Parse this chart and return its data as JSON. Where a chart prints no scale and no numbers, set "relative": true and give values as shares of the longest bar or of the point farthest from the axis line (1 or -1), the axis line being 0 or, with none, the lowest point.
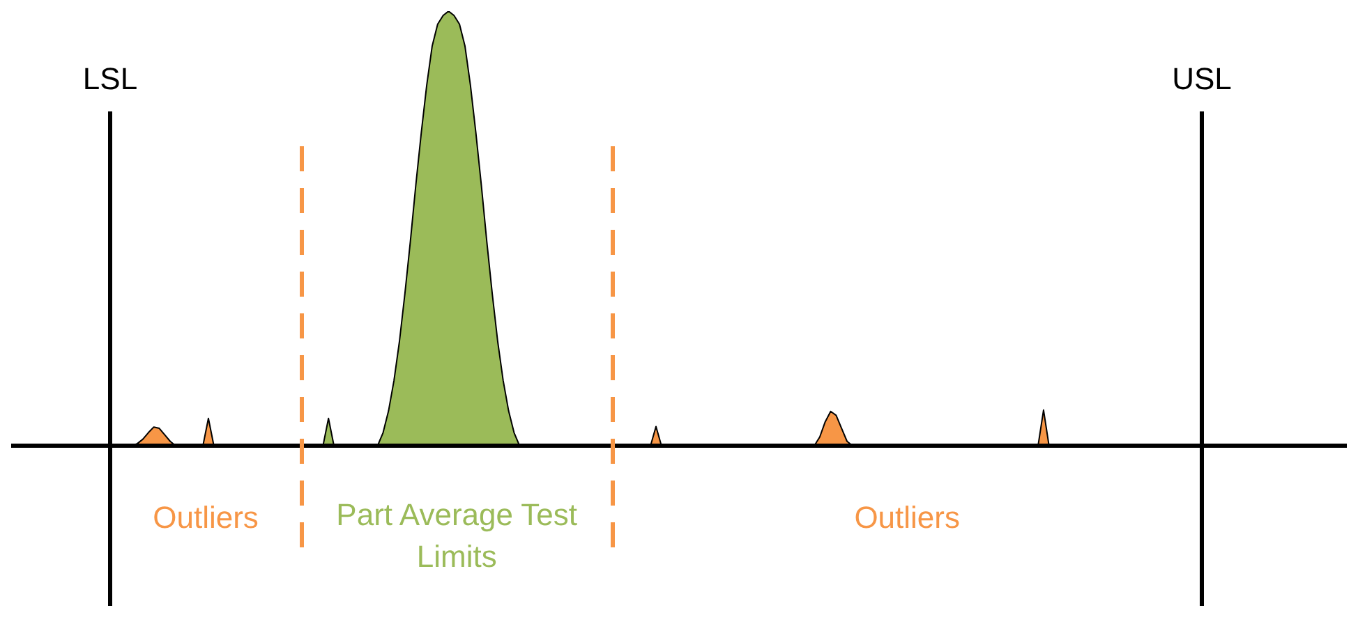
{
  "chart_data": {
    "type": "area",
    "relative": true,
    "categories": [
      "LSL",
      null,
      null,
      null,
      null,
      null,
      null,
      null,
      null,
      null,
      null,
      null,
      null,
      null,
      null,
      null,
      null,
      null,
      null,
      null,
      null,
      null,
      null,
      null,
      null,
      null,
      null,
      null,
      null,
      null,
      null,
      null,
      null,
      null,
      null,
      null,
      null,
      null,
      null,
      null,
      null,
      null,
      null,
      null,
      null,
      null,
      null,
      null,
      null,
      null,
      null,
      null,
      null,
      null,
      null,
      null,
      null,
      null,
      null,
      null,
      null,
      null,
      null,
      null,
      null,
      null,
      null,
      null,
      null,
      null,
      null,
      null,
      null,
      null,
      null,
      null,
      null,
      null,
      null,
      null,
      null,
      null,
      null,
      null,
      null,
      null,
      null,
      null,
      null,
      null,
      null,
      null,
      null,
      null,
      null,
      null,
      null,
      null,
      null,
      null,
      null,
      null,
      null,
      null,
      null,
      null,
      null,
      null,
      null,
      null,
      null,
      null,
      null,
      null,
      null,
      null,
      null,
      null,
      null,
      null,
      null,
      null,
      null,
      null,
      null,
      null,
      null,
      null,
      null,
      null,
      null,
      null,
      null,
      null,
      null,
      null,
      null,
      null,
      null,
      null,
      null,
      null,
      null,
      null,
      null,
      null,
      null,
      null,
      null,
      null,
      null,
      null,
      null,
      null,
      null,
      null,
      null,
      null,
      null,
      null,
      null,
      null,
      null,
      null,
      null,
      null,
      null,
      null,
      null,
      null,
      null,
      null,
      null,
      null,
      null,
      null,
      null,
      null,
      null,
      null,
      null,
      null,
      null,
      null,
      null,
      null,
      null,
      null,
      null,
      null,
      null,
      null,
      null,
      null,
      null,
      null,
      null,
      null,
      null,
      null,
      "USL"
    ],
    "series": [
      {
        "color": "#f79646",
        "values": [
          0,
          0,
          0,
          0,
          0,
          0.005,
          0.015,
          0.03,
          0.043,
          0.04,
          0.025,
          0.01,
          0,
          0,
          0,
          0,
          0,
          0,
          0.063,
          0,
          0,
          0,
          0,
          0,
          0,
          0,
          0,
          0,
          0,
          0,
          0,
          0,
          0,
          0,
          0,
          0,
          0,
          0,
          0,
          0,
          0,
          0,
          0,
          0,
          0,
          0,
          0,
          0,
          0,
          0,
          0,
          0,
          0,
          0,
          0,
          0,
          0,
          0,
          0,
          0,
          0,
          0,
          0,
          0,
          0,
          0,
          0,
          0,
          0,
          0,
          0,
          0,
          0,
          0,
          0,
          0,
          0,
          0,
          0,
          0,
          0,
          0,
          0,
          0,
          0,
          0,
          0,
          0,
          0,
          0,
          0,
          0,
          0,
          0,
          0,
          0,
          0,
          0,
          0,
          0,
          0.044,
          0,
          0,
          0,
          0,
          0,
          0,
          0,
          0,
          0,
          0,
          0,
          0,
          0,
          0,
          0,
          0,
          0,
          0,
          0,
          0,
          0,
          0,
          0,
          0,
          0,
          0,
          0,
          0,
          0,
          0.02,
          0.055,
          0.079,
          0.07,
          0.04,
          0.01,
          0,
          0,
          0,
          0,
          0,
          0,
          0,
          0,
          0,
          0,
          0,
          0,
          0,
          0,
          0,
          0,
          0,
          0,
          0,
          0,
          0,
          0,
          0,
          0,
          0,
          0,
          0,
          0,
          0,
          0,
          0,
          0,
          0,
          0,
          0,
          0.082,
          0,
          0,
          0,
          0,
          0,
          0,
          0,
          0,
          0,
          0,
          0,
          0,
          0,
          0,
          0,
          0,
          0,
          0,
          0,
          0,
          0,
          0,
          0,
          0,
          0,
          0,
          0,
          0,
          0
        ]
      },
      {
        "color": "#9bbb59",
        "values": [
          0,
          0,
          0,
          0,
          0,
          0,
          0,
          0,
          0,
          0,
          0,
          0,
          0,
          0,
          0,
          0,
          0,
          0,
          0,
          0,
          0,
          0,
          0,
          0,
          0,
          0,
          0,
          0,
          0,
          0,
          0,
          0,
          0,
          0,
          0,
          0,
          0,
          0,
          0,
          0,
          0.063,
          0,
          0,
          0,
          0,
          0,
          0,
          0,
          0,
          0,
          0.03,
          0.08,
          0.15,
          0.24,
          0.35,
          0.47,
          0.6,
          0.72,
          0.83,
          0.92,
          0.97,
          0.99,
          1,
          0.99,
          0.97,
          0.92,
          0.83,
          0.72,
          0.6,
          0.47,
          0.35,
          0.24,
          0.15,
          0.08,
          0.03,
          0,
          0,
          0,
          0,
          0,
          0,
          0,
          0,
          0,
          0,
          0,
          0,
          0,
          0,
          0,
          0,
          0,
          0,
          0,
          0,
          0,
          0,
          0,
          0,
          0,
          0,
          0,
          0,
          0,
          0,
          0,
          0,
          0,
          0,
          0,
          0,
          0,
          0,
          0,
          0,
          0,
          0,
          0,
          0,
          0,
          0,
          0,
          0,
          0,
          0,
          0,
          0,
          0,
          0,
          0,
          0,
          0,
          0,
          0,
          0,
          0,
          0,
          0,
          0,
          0,
          0,
          0,
          0,
          0,
          0,
          0,
          0,
          0,
          0,
          0,
          0,
          0,
          0,
          0,
          0,
          0,
          0,
          0,
          0,
          0,
          0,
          0,
          0,
          0,
          0,
          0,
          0,
          0,
          0,
          0,
          0,
          0,
          0,
          0,
          0,
          0,
          0,
          0,
          0,
          0,
          0,
          0,
          0,
          0,
          0,
          0,
          0,
          0,
          0,
          0,
          0,
          0,
          0,
          0,
          0,
          0,
          0,
          0,
          0,
          0,
          0
        ]
      }
    ],
    "ref_lines": [
      {
        "axis": "x",
        "value": "LSL",
        "color": "#000000",
        "line_style": "solid"
      },
      {
        "axis": "x",
        "value": "USL",
        "color": "#000000",
        "line_style": "solid"
      }
    ],
    "annotations": [
      "Outliers",
      "Part Average Test Limits",
      "Outliers"
    ]
  }
}
